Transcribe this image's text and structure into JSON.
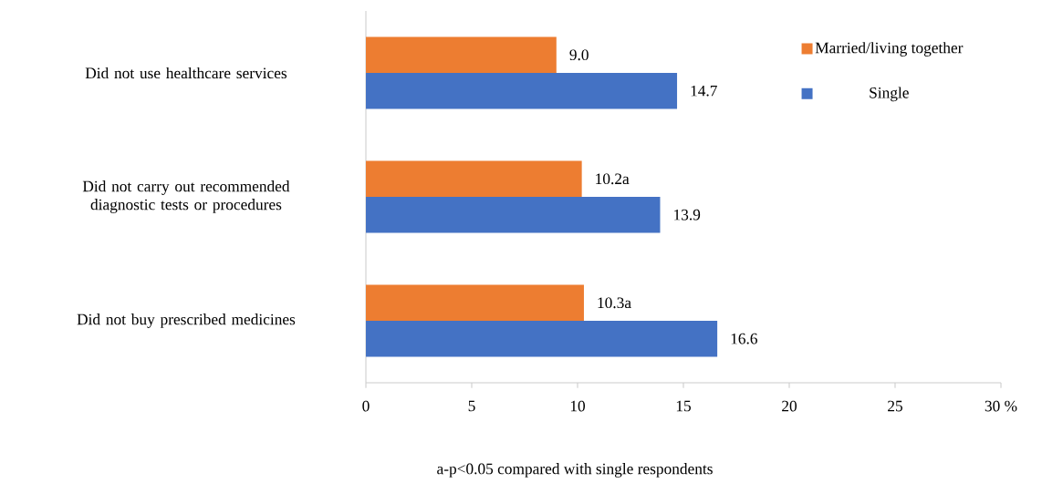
{
  "chart_data": {
    "type": "bar",
    "orientation": "horizontal",
    "categories": [
      "Did not use healthcare services",
      "Did not carry out recommended diagnostic tests or procedures",
      "Did not buy prescribed medicines"
    ],
    "series": [
      {
        "name": "Married/living together",
        "color": "#ed7d31",
        "values": [
          9.0,
          10.2,
          10.3
        ],
        "value_labels": [
          "9.0",
          "10.2a",
          "10.3a"
        ]
      },
      {
        "name": "Single",
        "color": "#4472c4",
        "values": [
          14.7,
          13.9,
          16.6
        ],
        "value_labels": [
          "14.7",
          "13.9",
          "16.6"
        ]
      }
    ],
    "xlim": [
      0,
      30
    ],
    "xticks": [
      0,
      5,
      10,
      15,
      20,
      25,
      {
        "value": 30,
        "label": "30 %"
      }
    ],
    "legend": "top right",
    "grid": false,
    "annotations": [
      "a-p<0.05 compared with single respondents"
    ]
  }
}
